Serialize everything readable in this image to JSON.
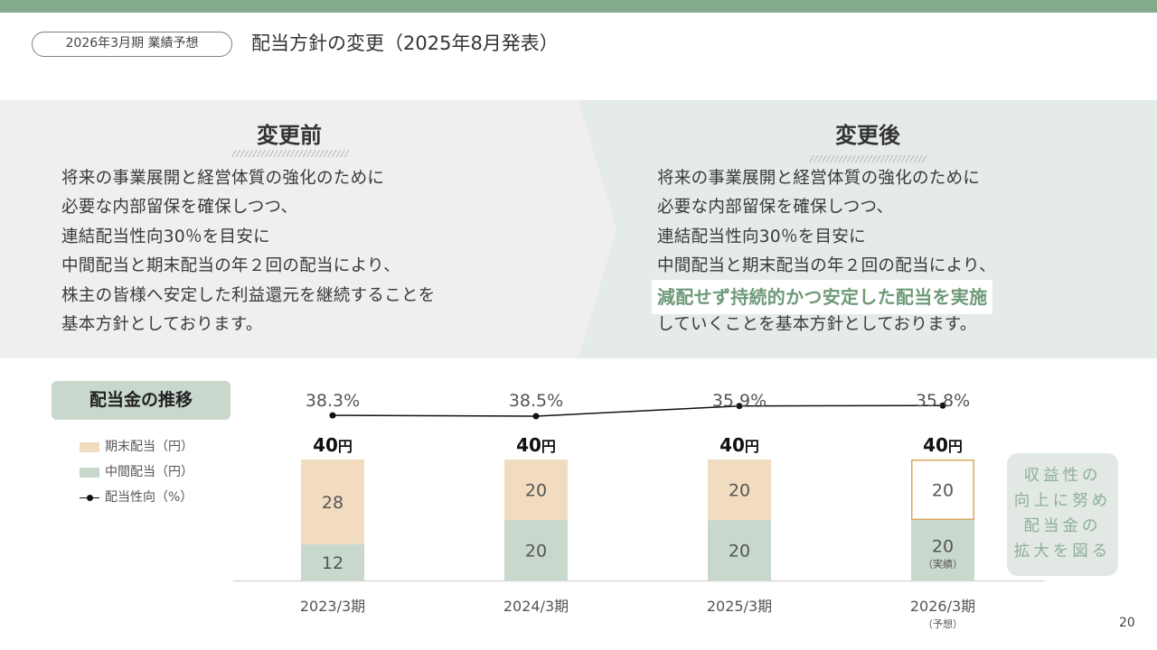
{
  "header": {
    "section_tag": "2026年3月期 業績予想",
    "title": "配当方針の変更（2025年8月発表）"
  },
  "before": {
    "heading": "変更前",
    "lines": [
      "将来の事業展開と経営体質の強化のために",
      "必要な内部留保を確保しつつ、",
      "連結配当性向30％を目安に",
      "中間配当と期末配当の年２回の配当により、",
      "株主の皆様へ安定した利益還元を継続することを",
      "基本方針としております。"
    ]
  },
  "after": {
    "heading": "変更後",
    "lines": [
      "将来の事業展開と経営体質の強化のために",
      "必要な内部留保を確保しつつ、",
      "連結配当性向30％を目安に",
      "中間配当と期末配当の年２回の配当により、"
    ],
    "highlight": "減配せず持続的かつ安定した配当を実施",
    "last_line": "していくことを基本方針としております。"
  },
  "chart_label": "配当金の推移",
  "legend": {
    "year_end": "期末配当（円）",
    "interim": "中間配当（円）",
    "payout": "配当性向（%）"
  },
  "side_note": [
    "収益性の",
    "向上に努め",
    "配当金の",
    "拡大を図る"
  ],
  "page_number": "20",
  "colors": {
    "top_bar": "#84aa8e",
    "year_end": "#f1dcc0",
    "interim": "#c9d8cd",
    "forecast_outline": "#d9a95e",
    "accent_text": "#6e9a78"
  },
  "chart_data": {
    "type": "bar",
    "stacked": true,
    "categories": [
      "2023/3期",
      "2024/3期",
      "2025/3期",
      "2026/3期"
    ],
    "category_notes": [
      "",
      "",
      "",
      "（予想）"
    ],
    "series": [
      {
        "name": "中間配当（円）",
        "values": [
          12,
          20,
          20,
          20
        ],
        "notes": [
          "",
          "",
          "",
          "（実績）"
        ]
      },
      {
        "name": "期末配当（円）",
        "values": [
          28,
          20,
          20,
          20
        ],
        "forecast": [
          false,
          false,
          false,
          true
        ]
      }
    ],
    "totals": [
      40,
      40,
      40,
      40
    ],
    "total_unit": "円",
    "line_series": {
      "name": "配当性向（%）",
      "values": [
        38.3,
        38.5,
        35.9,
        35.8
      ],
      "labels": [
        "38.3%",
        "38.5%",
        "35.9%",
        "35.8%"
      ]
    },
    "ylim": [
      0,
      40
    ],
    "legend_position": "left"
  }
}
